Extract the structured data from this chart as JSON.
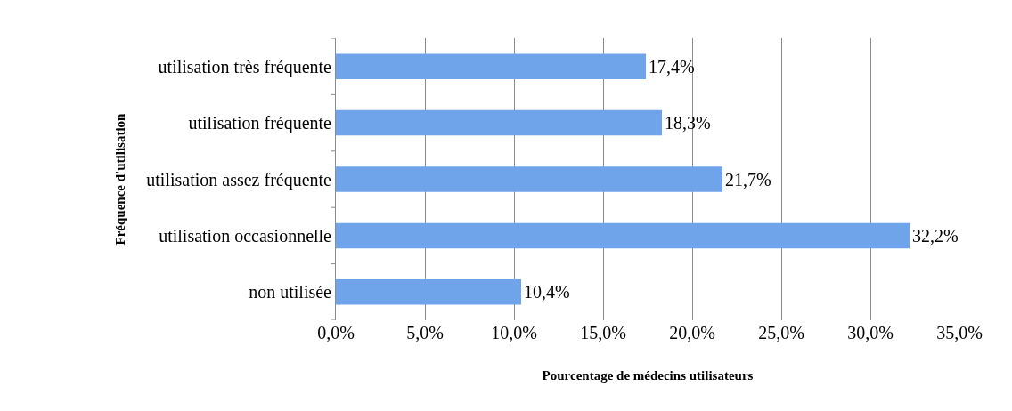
{
  "chart_data": {
    "type": "bar",
    "orientation": "horizontal",
    "xlabel": "Pourcentage de médecins utilisateurs",
    "ylabel": "Fréquence d'utilisation",
    "categories": [
      "utilisation très fréquente",
      "utilisation fréquente",
      "utilisation assez fréquente",
      "utilisation occasionnelle",
      "non utilisée"
    ],
    "values": [
      17.4,
      18.3,
      21.7,
      32.2,
      10.4
    ],
    "value_labels": [
      "17,4%",
      "18,3%",
      "21,7%",
      "32,2%",
      "10,4%"
    ],
    "color": "#6fa3ea",
    "xlim": [
      0,
      35
    ],
    "xticks": [
      {
        "value": 0,
        "label": "0,0%"
      },
      {
        "value": 5,
        "label": "5,0%"
      },
      {
        "value": 10,
        "label": "10,0%"
      },
      {
        "value": 15,
        "label": "15,0%"
      },
      {
        "value": 20,
        "label": "20,0%"
      },
      {
        "value": 25,
        "label": "25,0%"
      },
      {
        "value": 30,
        "label": "30,0%"
      },
      {
        "value": 35,
        "label": "35,0%"
      }
    ],
    "grid": "x"
  }
}
